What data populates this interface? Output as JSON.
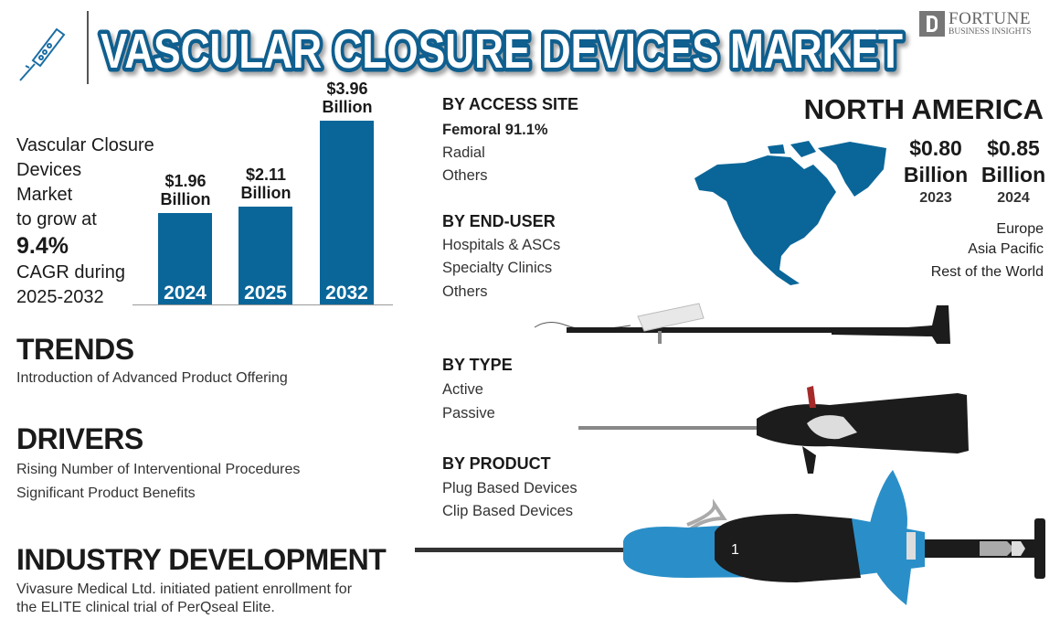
{
  "header": {
    "title": "VASCULAR CLOSURE DEVICES MARKET",
    "logo_text": "FORTUNE",
    "logo_subtext": "BUSINESS INSIGHTS",
    "icon": "closure-device-icon"
  },
  "summary": {
    "lines": [
      "Vascular Closure",
      "Devices",
      "Market",
      "to grow at"
    ],
    "cagr": "9.4%",
    "lines_after": [
      "CAGR during",
      "2025-2032"
    ]
  },
  "chart_data": {
    "type": "bar",
    "categories": [
      "2024",
      "2025",
      "2032"
    ],
    "values": [
      1.96,
      2.11,
      3.96
    ],
    "labels": [
      {
        "amount": "$1.96",
        "unit": "Billion"
      },
      {
        "amount": "$2.11",
        "unit": "Billion"
      },
      {
        "amount": "$3.96",
        "unit": "Billion"
      }
    ],
    "ylim": [
      0,
      4.6
    ],
    "grid": false,
    "colors": {
      "bar": "#0a6699"
    }
  },
  "trends": {
    "title": "TRENDS",
    "items": [
      "Introduction of Advanced Product Offering"
    ]
  },
  "drivers": {
    "title": "DRIVERS",
    "items": [
      "Rising Number of Interventional Procedures",
      "Significant Product Benefits"
    ]
  },
  "industry": {
    "title": "INDUSTRY DEVELOPMENT",
    "lines": [
      "Vivasure Medical Ltd. initiated patient enrollment for",
      "the ELITE clinical trial of PerQseal Elite."
    ]
  },
  "segments": [
    {
      "title": "BY ACCESS SITE",
      "items": [
        "Femoral 91.1%",
        "Radial",
        "Others"
      ]
    },
    {
      "title": "BY END-USER",
      "items": [
        "Hospitals & ASCs",
        "Specialty Clinics",
        "Others"
      ]
    },
    {
      "title": "BY TYPE",
      "items": [
        "Active",
        "Passive"
      ]
    },
    {
      "title": "BY PRODUCT",
      "items": [
        "Plug Based Devices",
        "Clip Based Devices"
      ]
    }
  ],
  "region": {
    "title": "NORTH AMERICA",
    "values": [
      {
        "amount": "$0.80",
        "unit": "Billion",
        "year": "2023"
      },
      {
        "amount": "$0.85",
        "unit": "Billion",
        "year": "2024"
      }
    ],
    "others": [
      "Europe",
      "Asia Pacific",
      "Rest of the World"
    ],
    "map_color": "#0a6699"
  }
}
